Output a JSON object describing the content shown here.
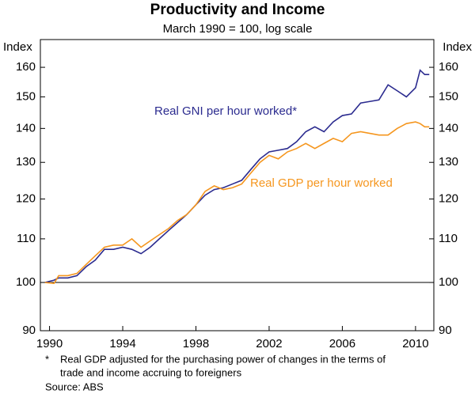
{
  "chart_data": {
    "type": "line",
    "title": "Productivity and Income",
    "subtitle": "March 1990 = 100, log scale",
    "ylabel": "Index",
    "y2label": "Index",
    "log_scale": true,
    "hline": 100,
    "x": [
      1989.75,
      1990.25,
      1990.5,
      1991,
      1991.5,
      1992,
      1992.5,
      1993,
      1993.5,
      1994,
      1994.5,
      1995,
      1995.5,
      1996,
      1996.5,
      1997,
      1997.5,
      1998,
      1998.5,
      1999,
      1999.5,
      2000,
      2000.5,
      2001,
      2001.5,
      2002,
      2002.5,
      2003,
      2003.5,
      2004,
      2004.5,
      2005,
      2005.5,
      2006,
      2006.5,
      2007,
      2007.5,
      2008,
      2008.5,
      2009,
      2009.5,
      2010,
      2010.25,
      2010.5,
      2010.75
    ],
    "series": [
      {
        "name": "Real GNI per hour worked*",
        "color": "#2b2b8f",
        "values": [
          100,
          100.5,
          101,
          101,
          101.5,
          103.5,
          105,
          107.5,
          107.5,
          108,
          107.5,
          106.5,
          108,
          110,
          112,
          114,
          116,
          118.5,
          121,
          122.5,
          123,
          124,
          125,
          128,
          131,
          133,
          133.5,
          134,
          136,
          139,
          140.5,
          139,
          142,
          144,
          144.5,
          148,
          148.5,
          149,
          154,
          152,
          150,
          153,
          159,
          157.5,
          157.5
        ]
      },
      {
        "name": "Real GDP per hour worked",
        "color": "#f5961e",
        "values": [
          100,
          99.8,
          101.5,
          101.5,
          102,
          104,
          106,
          108,
          108.5,
          108.5,
          110,
          108,
          109.5,
          111,
          112.5,
          114.5,
          116,
          118.5,
          122,
          123.5,
          122.5,
          123,
          124,
          127,
          130,
          132,
          131,
          133,
          134,
          135.5,
          134,
          135.5,
          137,
          136,
          138.5,
          139,
          138.5,
          138,
          138,
          140,
          141.5,
          142,
          141.5,
          140.5,
          140.5
        ]
      }
    ],
    "xlim": [
      1989.5,
      2011
    ],
    "xticks": [
      1990,
      1994,
      1998,
      2002,
      2006,
      2010
    ],
    "ylim": [
      90,
      170
    ],
    "yticks": [
      90,
      100,
      110,
      120,
      130,
      140,
      150,
      160
    ],
    "y2lim": [
      90,
      170
    ],
    "y2ticks": [
      90,
      100,
      110,
      120,
      130,
      140,
      150,
      160
    ],
    "footnote_mark": "*",
    "footnote": [
      "Real GDP adjusted for the purchasing power of changes in the terms of",
      "trade and income accruing to foreigners"
    ],
    "source": "Source: ABS"
  }
}
